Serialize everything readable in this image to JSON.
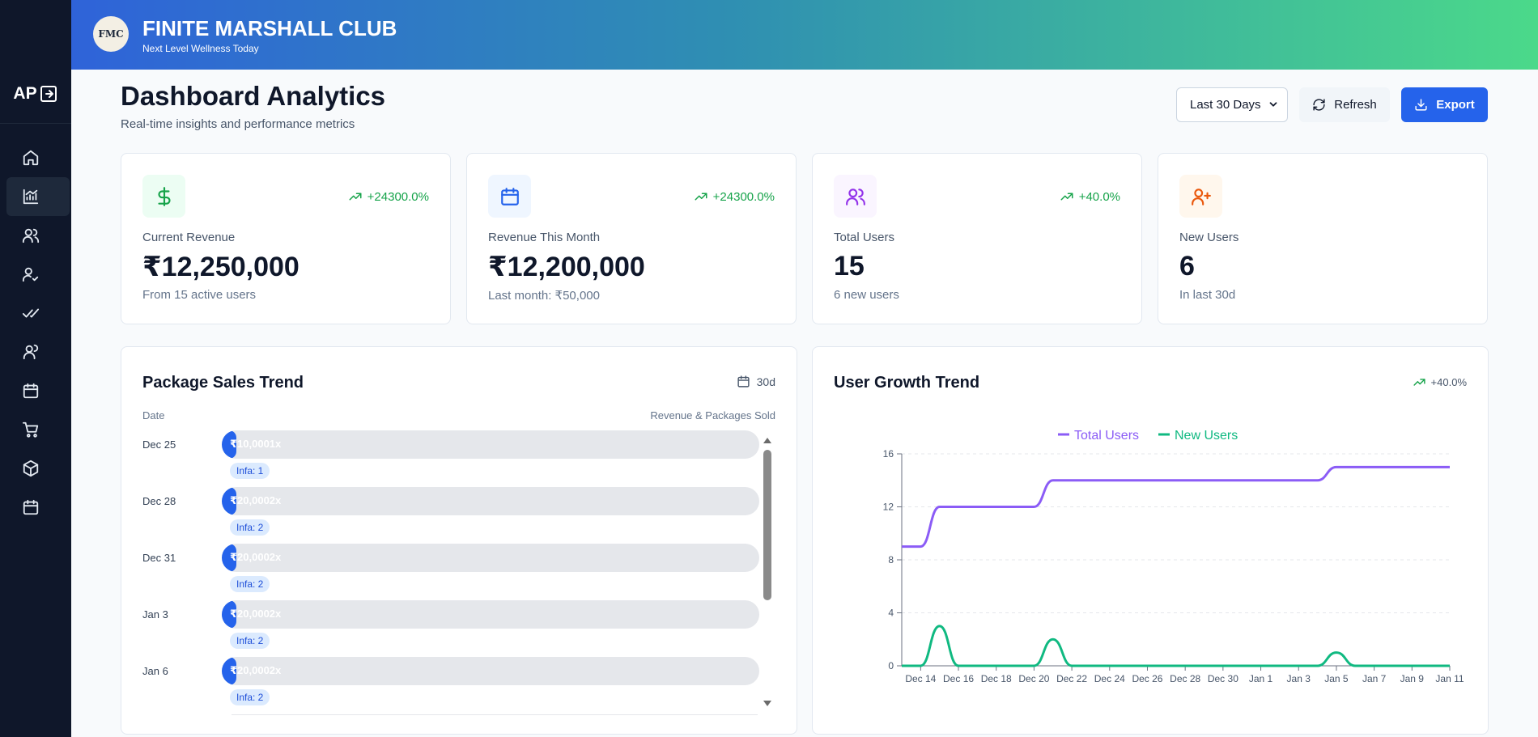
{
  "sidebar": {
    "logo": "AP",
    "items": [
      {
        "icon": "home-icon"
      },
      {
        "icon": "analytics-icon",
        "active": true
      },
      {
        "icon": "users-icon"
      },
      {
        "icon": "user-check-icon"
      },
      {
        "icon": "check-double-icon"
      },
      {
        "icon": "team-icon"
      },
      {
        "icon": "calendar-icon"
      },
      {
        "icon": "cart-icon"
      },
      {
        "icon": "box-icon"
      },
      {
        "icon": "calendar-icon"
      }
    ]
  },
  "header": {
    "logo_text": "FMC",
    "title": "FINITE MARSHALL CLUB",
    "subtitle": "Next Level Wellness Today"
  },
  "page": {
    "title": "Dashboard Analytics",
    "subtitle": "Real-time insights and performance metrics",
    "range_select": "Last 30 Days",
    "refresh_label": "Refresh",
    "export_label": "Export"
  },
  "stats": [
    {
      "icon": "dollar-icon",
      "icon_color": "#16a34a",
      "icon_bg": "#ecfdf3",
      "trend": "+24300.0%",
      "label": "Current Revenue",
      "value": "₹12,250,000",
      "foot": "From 15 active users"
    },
    {
      "icon": "calendar-icon",
      "icon_color": "#2563eb",
      "icon_bg": "#eff6ff",
      "trend": "+24300.0%",
      "label": "Revenue This Month",
      "value": "₹12,200,000",
      "foot": "Last month: ₹50,000"
    },
    {
      "icon": "users-icon",
      "icon_color": "#9333ea",
      "icon_bg": "#faf5ff",
      "trend": "+40.0%",
      "label": "Total Users",
      "value": "15",
      "foot": "6 new users"
    },
    {
      "icon": "user-plus-icon",
      "icon_color": "#ea580c",
      "icon_bg": "#fff7ed",
      "trend": "",
      "label": "New Users",
      "value": "6",
      "foot": "In last 30d"
    }
  ],
  "package_sales": {
    "title": "Package Sales Trend",
    "range": "30d",
    "col_left": "Date",
    "col_right": "Revenue & Packages Sold",
    "rows": [
      {
        "date": "Dec 25",
        "bar_text": "₹10,0001x",
        "fill": 0.025,
        "chip": "Infa: 1"
      },
      {
        "date": "Dec 28",
        "bar_text": "₹20,0002x",
        "fill": 0.025,
        "chip": "Infa: 2"
      },
      {
        "date": "Dec 31",
        "bar_text": "₹20,0002x",
        "fill": 0.025,
        "chip": "Infa: 2"
      },
      {
        "date": "Jan 3",
        "bar_text": "₹20,0002x",
        "fill": 0.025,
        "chip": "Infa: 2"
      },
      {
        "date": "Jan 6",
        "bar_text": "₹20,0002x",
        "fill": 0.025,
        "chip": "Infa: 2"
      }
    ]
  },
  "user_growth": {
    "title": "User Growth Trend",
    "trend": "+40.0%"
  },
  "chart_data": {
    "type": "line",
    "title": "User Growth Trend",
    "xlabel": "",
    "ylabel": "",
    "ylim": [
      0,
      16
    ],
    "yticks": [
      0,
      4,
      8,
      12,
      16
    ],
    "grid": true,
    "legend": "top-center",
    "x": [
      "Dec 13",
      "Dec 14",
      "Dec 15",
      "Dec 16",
      "Dec 17",
      "Dec 18",
      "Dec 19",
      "Dec 20",
      "Dec 21",
      "Dec 22",
      "Dec 23",
      "Dec 24",
      "Dec 25",
      "Dec 26",
      "Dec 27",
      "Dec 28",
      "Dec 29",
      "Dec 30",
      "Dec 31",
      "Jan 1",
      "Jan 2",
      "Jan 3",
      "Jan 4",
      "Jan 5",
      "Jan 6",
      "Jan 7",
      "Jan 8",
      "Jan 9",
      "Jan 10",
      "Jan 11"
    ],
    "xticks": [
      "Dec 14",
      "Dec 16",
      "Dec 18",
      "Dec 20",
      "Dec 22",
      "Dec 24",
      "Dec 26",
      "Dec 28",
      "Dec 30",
      "Jan 1",
      "Jan 3",
      "Jan 5",
      "Jan 7",
      "Jan 9",
      "Jan 11"
    ],
    "series": [
      {
        "name": "Total Users",
        "color": "#8b5cf6",
        "values": [
          9,
          9,
          12,
          12,
          12,
          12,
          12,
          12,
          14,
          14,
          14,
          14,
          14,
          14,
          14,
          14,
          14,
          14,
          14,
          14,
          14,
          14,
          14,
          15,
          15,
          15,
          15,
          15,
          15,
          15
        ]
      },
      {
        "name": "New Users",
        "color": "#10b981",
        "values": [
          0,
          0,
          3,
          0,
          0,
          0,
          0,
          0,
          2,
          0,
          0,
          0,
          0,
          0,
          0,
          0,
          0,
          0,
          0,
          0,
          0,
          0,
          0,
          1,
          0,
          0,
          0,
          0,
          0,
          0
        ]
      }
    ]
  }
}
